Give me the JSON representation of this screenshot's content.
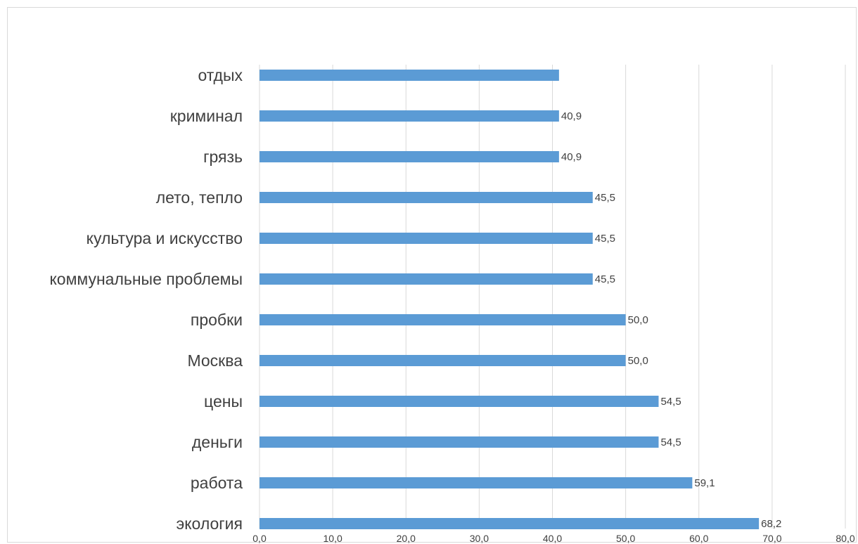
{
  "chart_data": {
    "type": "bar",
    "orientation": "horizontal",
    "categories": [
      "отдых",
      "криминал",
      "грязь",
      "лето, тепло",
      "культура и искусство",
      "коммунальные проблемы",
      "пробки",
      "Москва",
      "цены",
      "деньги",
      "работа",
      "экология"
    ],
    "values": [
      40.9,
      40.9,
      40.9,
      45.5,
      45.5,
      45.5,
      50.0,
      50.0,
      54.5,
      54.5,
      59.1,
      68.2
    ],
    "data_labels": [
      "",
      "40,9",
      "40,9",
      "45,5",
      "45,5",
      "45,5",
      "50,0",
      "50,0",
      "54,5",
      "54,5",
      "59,1",
      "68,2"
    ],
    "xlim": [
      0,
      80
    ],
    "x_ticks": [
      0,
      10,
      20,
      30,
      40,
      50,
      60,
      70,
      80
    ],
    "x_tick_labels": [
      "0,0",
      "10,0",
      "20,0",
      "30,0",
      "40,0",
      "50,0",
      "60,0",
      "70,0",
      "80,0"
    ],
    "grid": true,
    "bar_color": "#5b9bd5"
  }
}
